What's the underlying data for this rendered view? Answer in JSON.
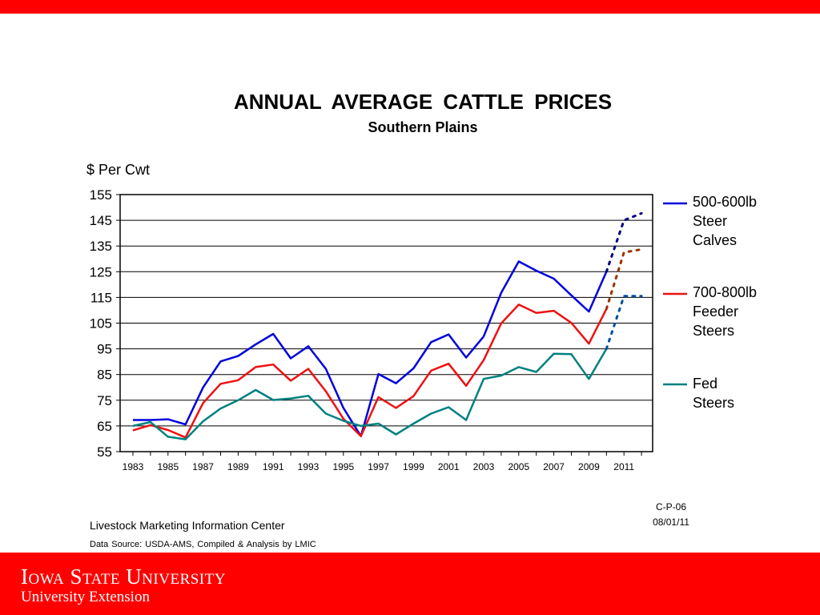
{
  "slide": {
    "code": "C-P-06",
    "date": "08/01/11",
    "source_org": "Livestock Marketing Information Center",
    "source_data": "Data Source:  USDA-AMS, Compiled & Analysis by LMIC",
    "logo_line1": "Iowa State University",
    "logo_line2": "University Extension",
    "colors": {
      "banner": "#ff0000",
      "background": "#ffffff"
    }
  },
  "chart_data": {
    "type": "line",
    "title": "ANNUAL  AVERAGE  CATTLE  PRICES",
    "subtitle": "Southern Plains",
    "ylabel": "$ Per Cwt",
    "xlabel": "",
    "ylim": [
      55,
      155
    ],
    "yticks": [
      55,
      65,
      75,
      85,
      95,
      105,
      115,
      125,
      135,
      145,
      155
    ],
    "xlim": [
      1983,
      2012
    ],
    "xtick_labels": [
      "1983",
      "1985",
      "1987",
      "1989",
      "1991",
      "1993",
      "1995",
      "1997",
      "1999",
      "2001",
      "2003",
      "2005",
      "2007",
      "2009",
      "2011"
    ],
    "grid": "horizontal",
    "legend_position": "right",
    "series": [
      {
        "name": "500-600lb Steer Calves",
        "legend_lines": [
          "500-600lb",
          "Steer",
          "Calves"
        ],
        "color": "#0000dd",
        "forecast_color": "#000080",
        "x": [
          1983,
          1984,
          1985,
          1986,
          1987,
          1988,
          1989,
          1990,
          1991,
          1992,
          1993,
          1994,
          1995,
          1996,
          1997,
          1998,
          1999,
          2000,
          2001,
          2002,
          2003,
          2004,
          2005,
          2006,
          2007,
          2008,
          2009,
          2010
        ],
        "values": [
          67.3,
          67.3,
          67.6,
          65.6,
          80.0,
          90.1,
          92.2,
          96.7,
          100.8,
          91.3,
          96.0,
          87.2,
          72.0,
          61.0,
          85.2,
          81.6,
          87.4,
          97.6,
          100.6,
          91.6,
          99.8,
          116.8,
          129.0,
          125.4,
          122.3,
          115.8,
          109.5,
          125.0
        ],
        "forecast_x": [
          2010,
          2011,
          2012
        ],
        "forecast_values": [
          125.0,
          145.0,
          147.7
        ]
      },
      {
        "name": "700-800lb Feeder Steers",
        "legend_lines": [
          "700-800lb",
          "Feeder",
          "Steers"
        ],
        "color": "#ee1111",
        "forecast_color": "#993300",
        "x": [
          1983,
          1984,
          1985,
          1986,
          1987,
          1988,
          1989,
          1990,
          1991,
          1992,
          1993,
          1994,
          1995,
          1996,
          1997,
          1998,
          1999,
          2000,
          2001,
          2002,
          2003,
          2004,
          2005,
          2006,
          2007,
          2008,
          2009,
          2010
        ],
        "values": [
          63.3,
          65.3,
          63.4,
          60.5,
          73.9,
          81.4,
          82.8,
          87.9,
          88.9,
          82.6,
          87.2,
          78.5,
          67.8,
          61.0,
          76.2,
          72.0,
          76.6,
          86.5,
          89.2,
          80.6,
          90.6,
          104.9,
          112.2,
          109.0,
          109.8,
          105.1,
          97.0,
          110.5
        ],
        "forecast_x": [
          2010,
          2011,
          2012
        ],
        "forecast_values": [
          110.5,
          132.5,
          133.7
        ]
      },
      {
        "name": "Fed Steers",
        "legend_lines": [
          "Fed",
          "Steers"
        ],
        "color": "#008080",
        "forecast_color": "#0050a0",
        "x": [
          1983,
          1984,
          1985,
          1986,
          1987,
          1988,
          1989,
          1990,
          1991,
          1992,
          1993,
          1994,
          1995,
          1996,
          1997,
          1998,
          1999,
          2000,
          2001,
          2002,
          2003,
          2004,
          2005,
          2006,
          2007,
          2008,
          2009,
          2010
        ],
        "values": [
          65.0,
          66.5,
          60.8,
          59.8,
          66.8,
          71.8,
          75.0,
          79.0,
          75.1,
          75.7,
          76.7,
          69.8,
          67.0,
          65.0,
          65.9,
          61.7,
          65.9,
          69.8,
          72.3,
          67.3,
          83.3,
          84.6,
          87.9,
          86.0,
          93.1,
          92.9,
          83.3,
          95.0
        ],
        "forecast_x": [
          2010,
          2011,
          2012
        ],
        "forecast_values": [
          95.0,
          115.5,
          115.5
        ]
      }
    ]
  }
}
